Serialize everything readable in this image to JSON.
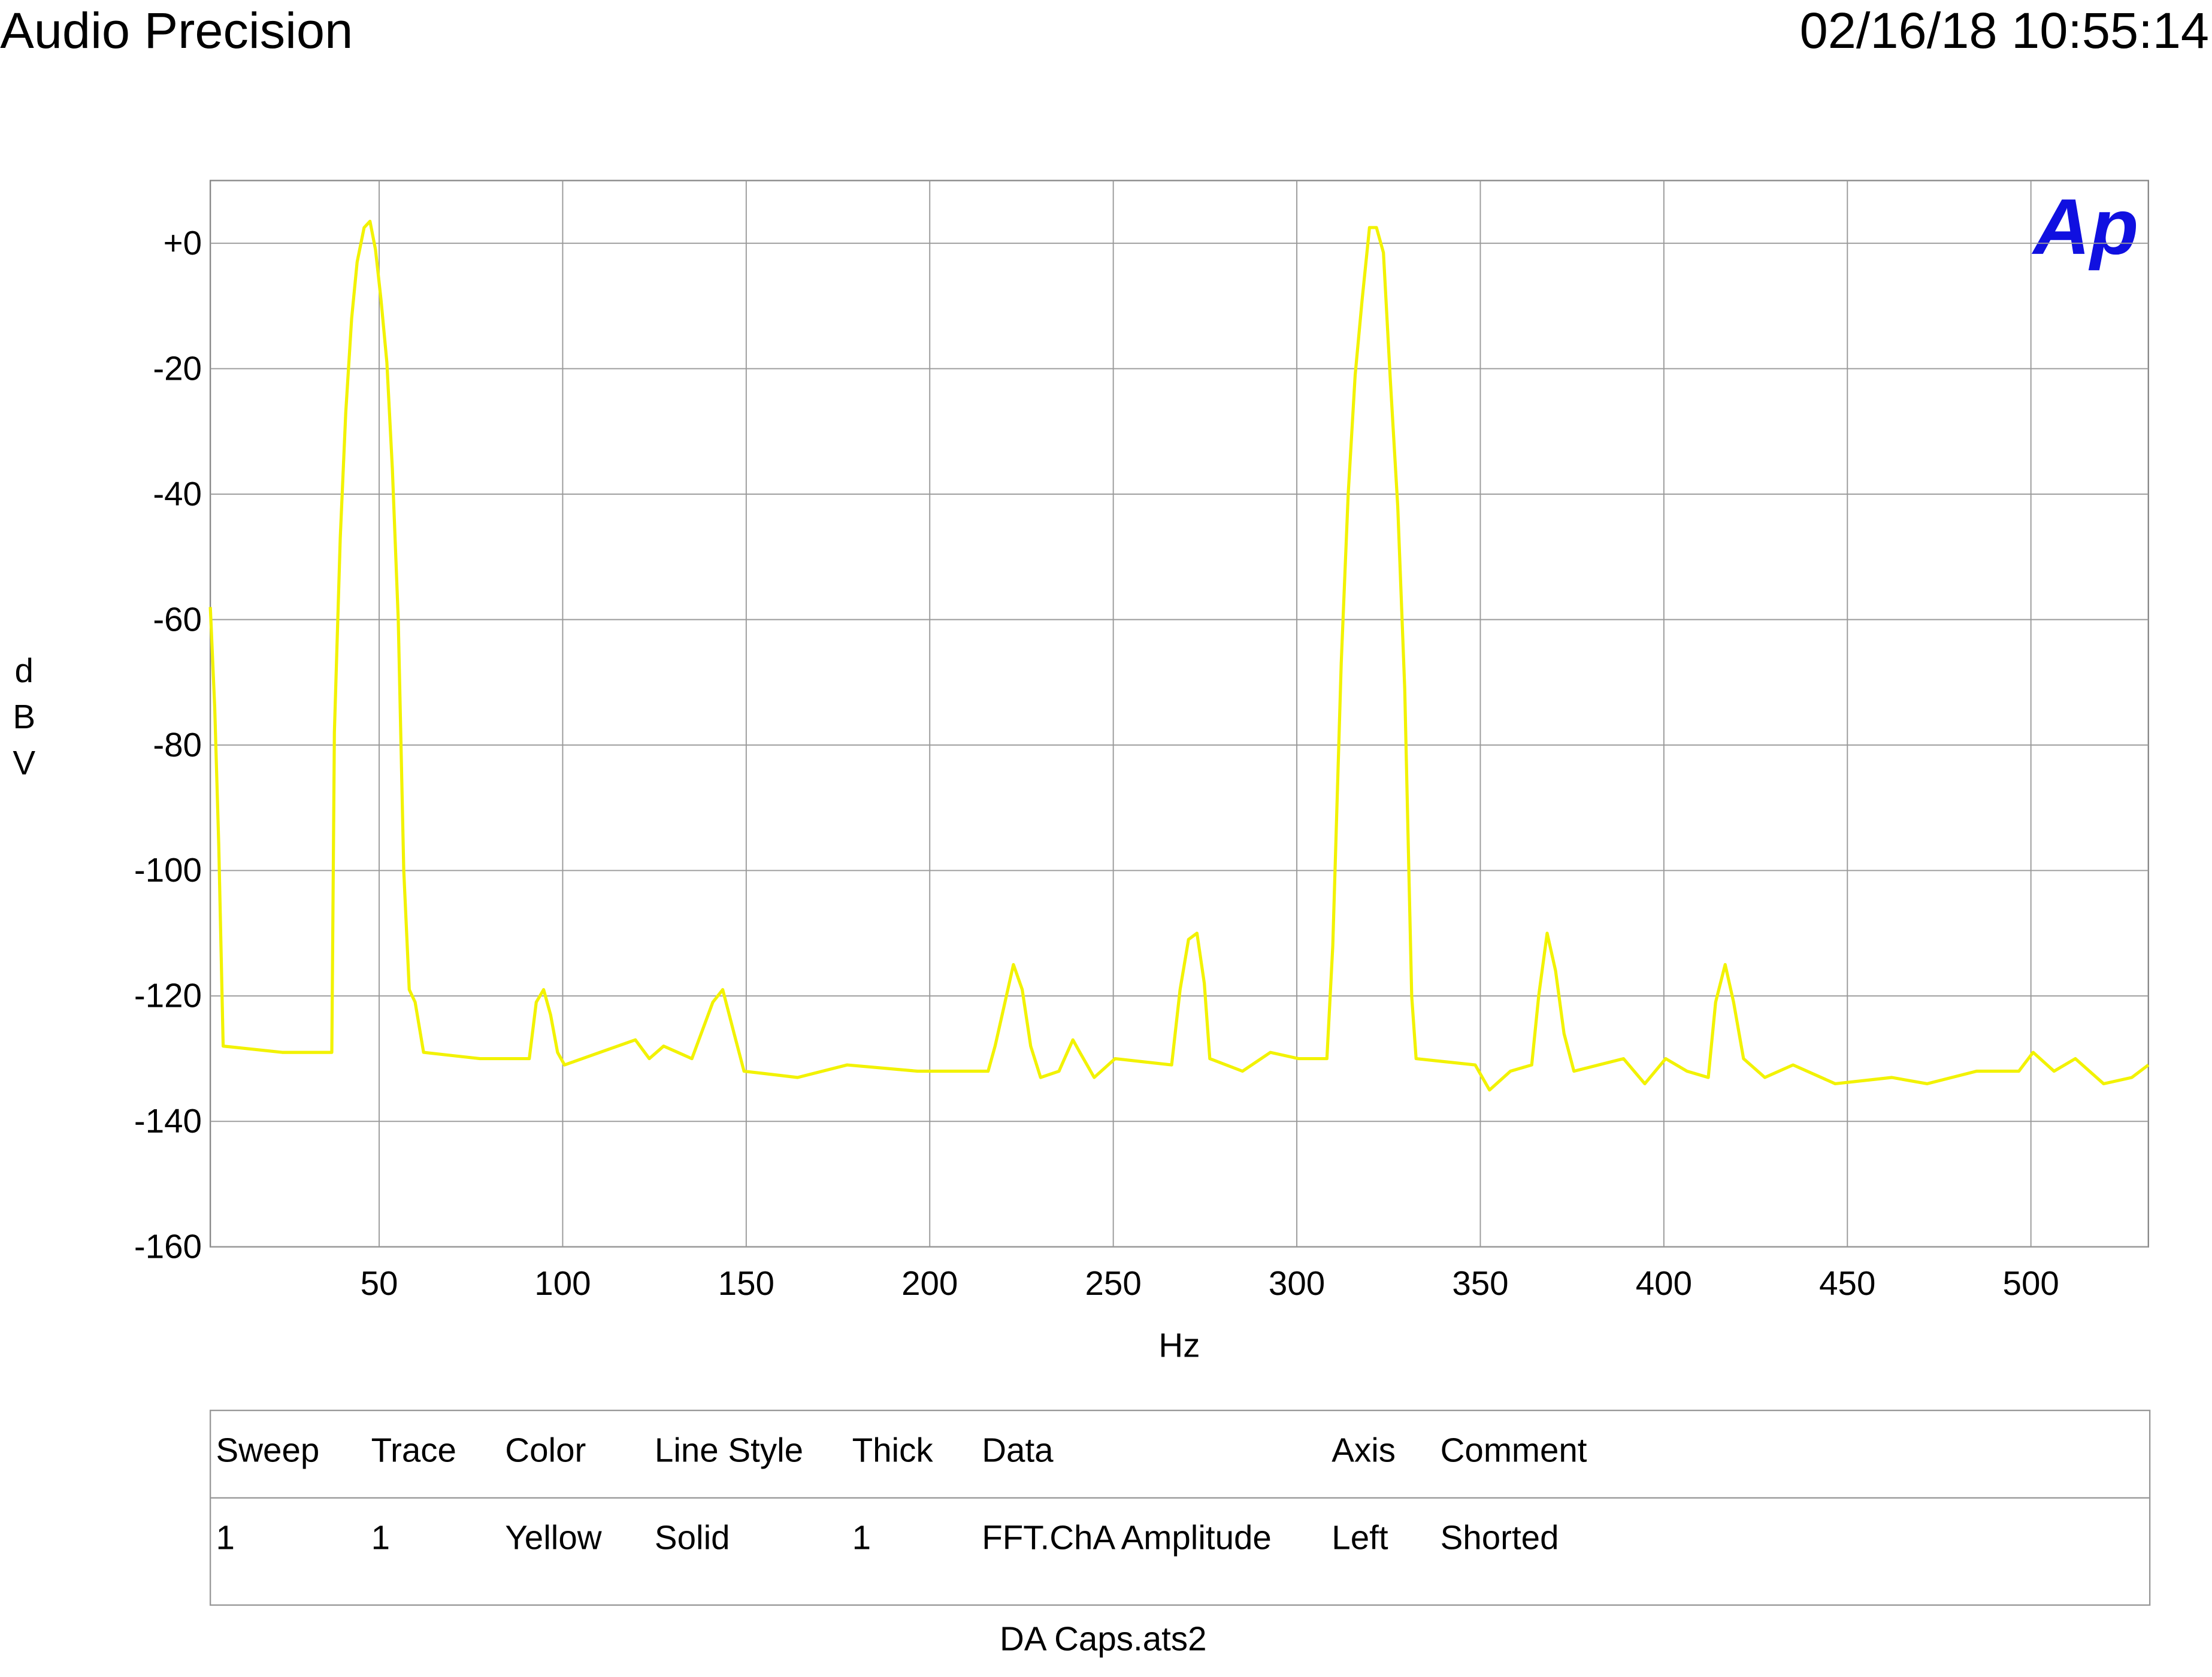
{
  "header": {
    "title": "Audio Precision",
    "timestamp": "02/16/18 10:55:14"
  },
  "logo": "Ap",
  "chart_data": {
    "type": "line",
    "xlabel": "Hz",
    "ylabel": "dBV",
    "xlim": [
      4,
      532
    ],
    "ylim": [
      -160,
      10
    ],
    "xticks": [
      50,
      100,
      150,
      200,
      250,
      300,
      350,
      400,
      450,
      500
    ],
    "yticks": [
      {
        "value": 0,
        "label": "+0"
      },
      -20,
      -40,
      -60,
      -80,
      -100,
      -120,
      -140,
      -160
    ],
    "grid": true,
    "color": "#f2f200",
    "x": [
      4,
      5.2,
      6.3,
      7.5,
      23.6,
      37.1,
      37.8,
      39.4,
      40.9,
      42.5,
      44,
      45.9,
      47.5,
      49,
      50.5,
      52.1,
      53.6,
      55.2,
      56.7,
      58.2,
      59.8,
      62.1,
      77.5,
      90.9,
      92.8,
      94.8,
      96.7,
      98.6,
      100.5,
      119.8,
      123.6,
      127.5,
      135.2,
      140.9,
      143.6,
      146.7,
      149.4,
      164,
      177.5,
      196.7,
      215.9,
      217.8,
      220.5,
      222.8,
      225.2,
      227.5,
      230.2,
      235.2,
      239,
      240.9,
      244.8,
      250.5,
      265.9,
      268.2,
      270.5,
      272.8,
      274.8,
      276.3,
      285.2,
      292.8,
      300.5,
      308.2,
      309.8,
      312.1,
      314,
      315.9,
      317.8,
      319.8,
      321.7,
      323.6,
      325.5,
      327.5,
      329.4,
      331.3,
      332.5,
      348.6,
      352.5,
      358.2,
      364,
      365.9,
      368.2,
      370.5,
      372.8,
      375.5,
      389,
      394.8,
      400.5,
      406.3,
      412.1,
      414.1,
      416.7,
      419,
      421.7,
      427.5,
      435.2,
      446.7,
      462.1,
      471.7,
      485.2,
      496.7,
      500.6,
      506.3,
      512.1,
      519.8,
      527.5,
      532
    ],
    "values": [
      -58,
      -74,
      -96,
      -128,
      -129,
      -129,
      -78,
      -47,
      -27,
      -12,
      -3,
      2.5,
      3.5,
      -1,
      -9,
      -19,
      -36,
      -60,
      -100,
      -119,
      -121,
      -129,
      -130,
      -130,
      -121,
      -119,
      -123,
      -129,
      -131,
      -127,
      -130,
      -128,
      -130,
      -121,
      -119,
      -126,
      -132,
      -133,
      -131,
      -132,
      -132,
      -128,
      -121,
      -115,
      -119,
      -128,
      -133,
      -132,
      -127,
      -129,
      -133,
      -130,
      -131,
      -119,
      -111,
      -110,
      -118,
      -130,
      -132,
      -129,
      -130,
      -130,
      -112,
      -67,
      -40,
      -21,
      -9,
      2.5,
      2.5,
      -1.5,
      -22,
      -42,
      -71,
      -120,
      -130,
      -131,
      -135,
      -132,
      -131,
      -120,
      -110,
      -116,
      -126,
      -132,
      -130,
      -134,
      -130,
      -132,
      -133,
      -121,
      -115,
      -121,
      -130,
      -133,
      -131,
      -134,
      -133,
      -134,
      -132,
      -132,
      -129,
      -132,
      -130,
      -134,
      -133,
      -131
    ]
  },
  "table": {
    "header": [
      "Sweep",
      "Trace",
      "Color",
      "Line Style",
      "Thick",
      "Data",
      "Axis",
      "Comment"
    ],
    "rows": [
      [
        "1",
        "1",
        "Yellow",
        "Solid",
        "1",
        "FFT.ChA Amplitude",
        "Left",
        "Shorted"
      ]
    ]
  },
  "footer": "DA Caps.ats2"
}
